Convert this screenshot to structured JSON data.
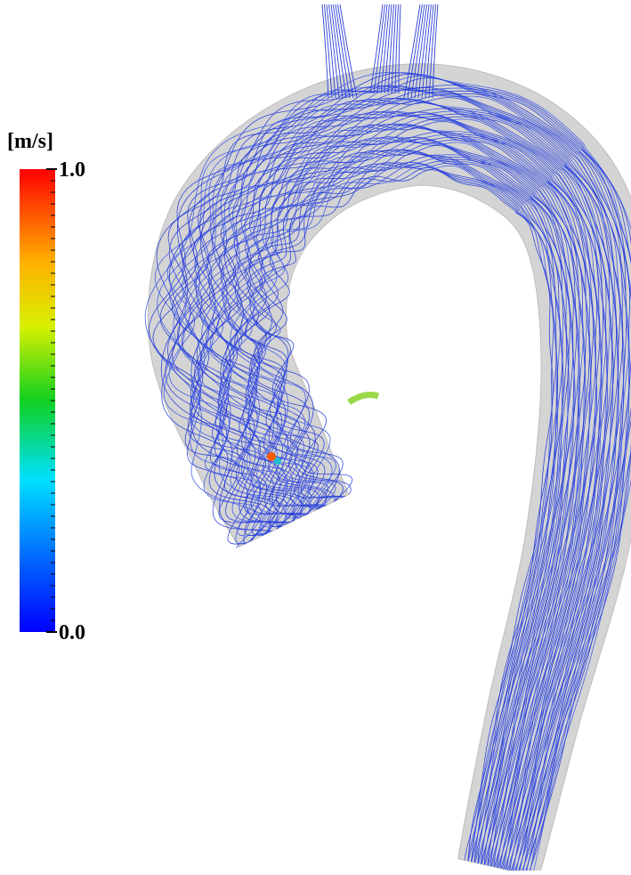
{
  "colorbar": {
    "unit": "[m/s]",
    "ticks": [
      {
        "value": 0,
        "label": "0.0"
      },
      {
        "value": 1,
        "label": "1.0"
      }
    ]
  }
}
